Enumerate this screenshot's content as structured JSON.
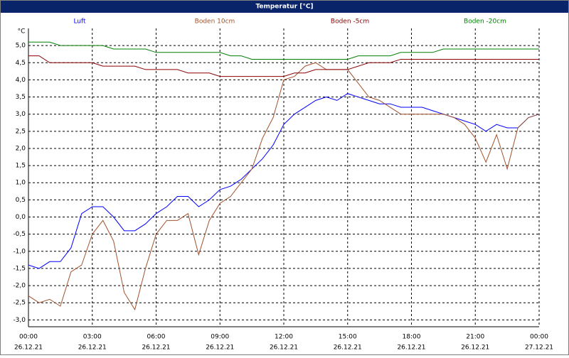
{
  "chart_data": {
    "type": "line",
    "title": "Temperatur [°C]",
    "ylabel": "°C",
    "x": [
      0,
      0.5,
      1,
      1.5,
      2,
      2.5,
      3,
      3.5,
      4,
      4.5,
      5,
      5.5,
      6,
      6.5,
      7,
      7.5,
      8,
      8.5,
      9,
      9.5,
      10,
      10.5,
      11,
      11.5,
      12,
      12.5,
      13,
      13.5,
      14,
      14.5,
      15,
      15.5,
      16,
      16.5,
      17,
      17.5,
      18,
      18.5,
      19,
      19.5,
      20,
      20.5,
      21,
      21.5,
      22,
      22.5,
      23,
      23.5,
      24
    ],
    "series": [
      {
        "name": "Luft",
        "color": "#0000ff",
        "values": [
          -1.4,
          -1.5,
          -1.3,
          -1.3,
          -0.9,
          0.1,
          0.3,
          0.3,
          0.0,
          -0.4,
          -0.4,
          -0.2,
          0.1,
          0.3,
          0.6,
          0.6,
          0.3,
          0.5,
          0.8,
          0.9,
          1.1,
          1.4,
          1.7,
          2.1,
          2.7,
          3.0,
          3.2,
          3.4,
          3.5,
          3.4,
          3.6,
          3.5,
          3.4,
          3.3,
          3.3,
          3.2,
          3.2,
          3.2,
          3.1,
          3.0,
          2.9,
          2.8,
          2.7,
          2.5,
          2.7,
          2.6,
          2.6,
          2.9,
          3.0
        ]
      },
      {
        "name": "Boden 10cm",
        "color": "#a0522d",
        "values": [
          -2.3,
          -2.5,
          -2.4,
          -2.6,
          -1.6,
          -1.4,
          -0.5,
          -0.1,
          -0.7,
          -2.2,
          -2.7,
          -1.5,
          -0.5,
          -0.1,
          -0.1,
          0.1,
          -1.1,
          -0.1,
          0.4,
          0.6,
          1.0,
          1.4,
          2.3,
          2.9,
          4.0,
          4.1,
          4.4,
          4.5,
          4.3,
          4.3,
          4.3,
          3.9,
          3.5,
          3.4,
          3.2,
          3.0,
          3.0,
          3.0,
          3.0,
          3.0,
          2.9,
          2.7,
          2.3,
          1.6,
          2.4,
          1.4,
          2.6,
          2.9,
          3.0
        ]
      },
      {
        "name": "Boden -5cm",
        "color": "#8b0000",
        "values": [
          4.7,
          4.7,
          4.5,
          4.5,
          4.5,
          4.5,
          4.5,
          4.4,
          4.4,
          4.4,
          4.4,
          4.3,
          4.3,
          4.3,
          4.3,
          4.2,
          4.2,
          4.2,
          4.1,
          4.1,
          4.1,
          4.1,
          4.1,
          4.1,
          4.1,
          4.2,
          4.2,
          4.3,
          4.3,
          4.3,
          4.3,
          4.4,
          4.5,
          4.5,
          4.5,
          4.6,
          4.6,
          4.6,
          4.6,
          4.6,
          4.6,
          4.6,
          4.6,
          4.6,
          4.6,
          4.6,
          4.6,
          4.6,
          4.6
        ]
      },
      {
        "name": "Boden -20cm",
        "color": "#008000",
        "values": [
          5.1,
          5.1,
          5.1,
          5.0,
          5.0,
          5.0,
          5.0,
          5.0,
          4.9,
          4.9,
          4.9,
          4.9,
          4.8,
          4.8,
          4.8,
          4.8,
          4.8,
          4.8,
          4.8,
          4.7,
          4.7,
          4.6,
          4.6,
          4.6,
          4.6,
          4.6,
          4.6,
          4.6,
          4.6,
          4.6,
          4.6,
          4.7,
          4.7,
          4.7,
          4.7,
          4.8,
          4.8,
          4.8,
          4.8,
          4.9,
          4.9,
          4.9,
          4.9,
          4.9,
          4.9,
          4.9,
          4.9,
          4.9,
          4.9
        ]
      }
    ],
    "xlim": [
      0,
      24
    ],
    "xticks": [
      {
        "value": 0,
        "label": "00:00",
        "date": "26.12.21"
      },
      {
        "value": 3,
        "label": "03:00",
        "date": "26.12.21"
      },
      {
        "value": 6,
        "label": "06:00",
        "date": "26.12.21"
      },
      {
        "value": 9,
        "label": "09:00",
        "date": "26.12.21"
      },
      {
        "value": 12,
        "label": "12:00",
        "date": "26.12.21"
      },
      {
        "value": 15,
        "label": "15:00",
        "date": "26.12.21"
      },
      {
        "value": 18,
        "label": "18:00",
        "date": "26.12.21"
      },
      {
        "value": 21,
        "label": "21:00",
        "date": "26.12.21"
      },
      {
        "value": 24,
        "label": "00:00",
        "date": "27.12.21"
      }
    ],
    "ylim": [
      -3.2,
      5.5
    ],
    "yticks": [
      {
        "value": -3,
        "label": "-3,0"
      },
      {
        "value": -2.5,
        "label": "-2,5"
      },
      {
        "value": -2,
        "label": "-2,0"
      },
      {
        "value": -1.5,
        "label": "-1,5"
      },
      {
        "value": -1,
        "label": "-1,0"
      },
      {
        "value": -0.5,
        "label": "-0,5"
      },
      {
        "value": 0,
        "label": "0,0"
      },
      {
        "value": 0.5,
        "label": "0,5"
      },
      {
        "value": 1,
        "label": "1,0"
      },
      {
        "value": 1.5,
        "label": "1,5"
      },
      {
        "value": 2,
        "label": "2,0"
      },
      {
        "value": 2.5,
        "label": "2,5"
      },
      {
        "value": 3,
        "label": "3,0"
      },
      {
        "value": 3.5,
        "label": "3,5"
      },
      {
        "value": 4,
        "label": "4,0"
      },
      {
        "value": 4.5,
        "label": "4,5"
      },
      {
        "value": 5,
        "label": "5,0"
      }
    ],
    "grid": true
  }
}
